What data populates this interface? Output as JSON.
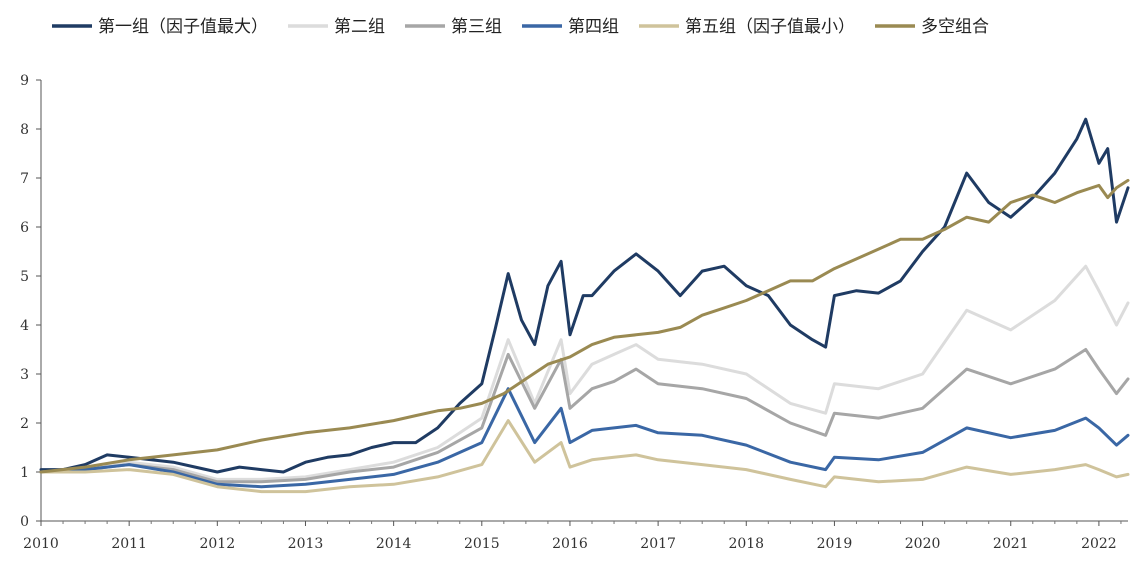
{
  "chart_data": {
    "type": "line",
    "title": "",
    "xlabel": "",
    "ylabel": "",
    "x_range": [
      2010.0,
      2022.33
    ],
    "ylim": [
      0,
      9
    ],
    "yticks": [
      0,
      1,
      2,
      3,
      4,
      5,
      6,
      7,
      8,
      9
    ],
    "xtick_labels": [
      "2010",
      "2011",
      "2012",
      "2013",
      "2014",
      "2015",
      "2016",
      "2017",
      "2018",
      "2019",
      "2020",
      "2021",
      "2022"
    ],
    "grid": false,
    "legend_position": "top",
    "series": [
      {
        "name": "第一组（因子值最大）",
        "color": "#1f3b63",
        "x": [
          2010.0,
          2010.25,
          2010.5,
          2010.75,
          2011.0,
          2011.25,
          2011.5,
          2011.75,
          2012.0,
          2012.25,
          2012.5,
          2012.75,
          2013.0,
          2013.25,
          2013.5,
          2013.75,
          2014.0,
          2014.25,
          2014.5,
          2014.75,
          2015.0,
          2015.15,
          2015.3,
          2015.45,
          2015.6,
          2015.75,
          2015.9,
          2016.0,
          2016.15,
          2016.25,
          2016.5,
          2016.75,
          2017.0,
          2017.25,
          2017.5,
          2017.75,
          2018.0,
          2018.25,
          2018.5,
          2018.75,
          2018.9,
          2019.0,
          2019.25,
          2019.5,
          2019.75,
          2020.0,
          2020.25,
          2020.5,
          2020.75,
          2021.0,
          2021.25,
          2021.5,
          2021.75,
          2021.85,
          2022.0,
          2022.1,
          2022.2,
          2022.33
        ],
        "values": [
          1.05,
          1.05,
          1.15,
          1.35,
          1.3,
          1.25,
          1.2,
          1.1,
          1.0,
          1.1,
          1.05,
          1.0,
          1.2,
          1.3,
          1.35,
          1.5,
          1.6,
          1.6,
          1.9,
          2.4,
          2.8,
          3.9,
          5.05,
          4.1,
          3.6,
          4.8,
          5.3,
          3.8,
          4.6,
          4.6,
          5.1,
          5.45,
          5.1,
          4.6,
          5.1,
          5.2,
          4.8,
          4.6,
          4.0,
          3.7,
          3.55,
          4.6,
          4.7,
          4.65,
          4.9,
          5.5,
          6.0,
          7.1,
          6.5,
          6.2,
          6.6,
          7.1,
          7.8,
          8.2,
          7.3,
          7.6,
          6.1,
          6.8
        ]
      },
      {
        "name": "第二组",
        "color": "#dcdcdc",
        "x": [
          2010.0,
          2010.5,
          2011.0,
          2011.5,
          2012.0,
          2012.5,
          2013.0,
          2013.5,
          2014.0,
          2014.5,
          2015.0,
          2015.3,
          2015.6,
          2015.9,
          2016.0,
          2016.25,
          2016.5,
          2016.75,
          2017.0,
          2017.5,
          2018.0,
          2018.5,
          2018.9,
          2019.0,
          2019.5,
          2020.0,
          2020.5,
          2021.0,
          2021.5,
          2021.85,
          2022.0,
          2022.2,
          2022.33
        ],
        "values": [
          1.0,
          1.05,
          1.2,
          1.1,
          0.85,
          0.85,
          0.9,
          1.05,
          1.2,
          1.5,
          2.1,
          3.7,
          2.4,
          3.7,
          2.6,
          3.2,
          3.4,
          3.6,
          3.3,
          3.2,
          3.0,
          2.4,
          2.2,
          2.8,
          2.7,
          3.0,
          4.3,
          3.9,
          4.5,
          5.2,
          4.7,
          4.0,
          4.45
        ]
      },
      {
        "name": "第三组",
        "color": "#a6a6a6",
        "x": [
          2010.0,
          2010.5,
          2011.0,
          2011.5,
          2012.0,
          2012.5,
          2013.0,
          2013.5,
          2014.0,
          2014.5,
          2015.0,
          2015.3,
          2015.6,
          2015.9,
          2016.0,
          2016.25,
          2016.5,
          2016.75,
          2017.0,
          2017.5,
          2018.0,
          2018.5,
          2018.9,
          2019.0,
          2019.5,
          2020.0,
          2020.5,
          2021.0,
          2021.5,
          2021.85,
          2022.0,
          2022.2,
          2022.33
        ],
        "values": [
          1.0,
          1.05,
          1.15,
          1.05,
          0.8,
          0.8,
          0.85,
          1.0,
          1.1,
          1.4,
          1.9,
          3.4,
          2.3,
          3.3,
          2.3,
          2.7,
          2.85,
          3.1,
          2.8,
          2.7,
          2.5,
          2.0,
          1.75,
          2.2,
          2.1,
          2.3,
          3.1,
          2.8,
          3.1,
          3.5,
          3.1,
          2.6,
          2.9
        ]
      },
      {
        "name": "第四组",
        "color": "#3a67a5",
        "x": [
          2010.0,
          2010.5,
          2011.0,
          2011.5,
          2012.0,
          2012.5,
          2013.0,
          2013.5,
          2014.0,
          2014.5,
          2015.0,
          2015.3,
          2015.6,
          2015.9,
          2016.0,
          2016.25,
          2016.5,
          2016.75,
          2017.0,
          2017.5,
          2018.0,
          2018.5,
          2018.9,
          2019.0,
          2019.5,
          2020.0,
          2020.5,
          2021.0,
          2021.5,
          2021.85,
          2022.0,
          2022.2,
          2022.33
        ],
        "values": [
          1.0,
          1.05,
          1.15,
          1.0,
          0.75,
          0.7,
          0.75,
          0.85,
          0.95,
          1.2,
          1.6,
          2.7,
          1.6,
          2.3,
          1.6,
          1.85,
          1.9,
          1.95,
          1.8,
          1.75,
          1.55,
          1.2,
          1.05,
          1.3,
          1.25,
          1.4,
          1.9,
          1.7,
          1.85,
          2.1,
          1.9,
          1.55,
          1.75
        ]
      },
      {
        "name": "第五组（因子值最小）",
        "color": "#cfc39b",
        "x": [
          2010.0,
          2010.5,
          2011.0,
          2011.5,
          2012.0,
          2012.5,
          2013.0,
          2013.5,
          2014.0,
          2014.5,
          2015.0,
          2015.3,
          2015.6,
          2015.9,
          2016.0,
          2016.25,
          2016.5,
          2016.75,
          2017.0,
          2017.5,
          2018.0,
          2018.5,
          2018.9,
          2019.0,
          2019.5,
          2020.0,
          2020.5,
          2021.0,
          2021.5,
          2021.85,
          2022.0,
          2022.2,
          2022.33
        ],
        "values": [
          1.0,
          1.0,
          1.05,
          0.95,
          0.7,
          0.6,
          0.6,
          0.7,
          0.75,
          0.9,
          1.15,
          2.05,
          1.2,
          1.6,
          1.1,
          1.25,
          1.3,
          1.35,
          1.25,
          1.15,
          1.05,
          0.85,
          0.7,
          0.9,
          0.8,
          0.85,
          1.1,
          0.95,
          1.05,
          1.15,
          1.05,
          0.9,
          0.95
        ]
      },
      {
        "name": "多空组合",
        "color": "#9a8a52",
        "x": [
          2010.0,
          2010.5,
          2011.0,
          2011.5,
          2012.0,
          2012.5,
          2013.0,
          2013.5,
          2014.0,
          2014.25,
          2014.5,
          2014.75,
          2015.0,
          2015.25,
          2015.5,
          2015.75,
          2016.0,
          2016.25,
          2016.5,
          2016.75,
          2017.0,
          2017.25,
          2017.5,
          2017.75,
          2018.0,
          2018.25,
          2018.5,
          2018.75,
          2019.0,
          2019.25,
          2019.5,
          2019.75,
          2020.0,
          2020.25,
          2020.5,
          2020.75,
          2021.0,
          2021.25,
          2021.5,
          2021.75,
          2022.0,
          2022.1,
          2022.2,
          2022.33
        ],
        "values": [
          1.0,
          1.1,
          1.25,
          1.35,
          1.45,
          1.65,
          1.8,
          1.9,
          2.05,
          2.15,
          2.25,
          2.3,
          2.4,
          2.6,
          2.9,
          3.2,
          3.35,
          3.6,
          3.75,
          3.8,
          3.85,
          3.95,
          4.2,
          4.35,
          4.5,
          4.7,
          4.9,
          4.9,
          5.15,
          5.35,
          5.55,
          5.75,
          5.75,
          5.95,
          6.2,
          6.1,
          6.5,
          6.65,
          6.5,
          6.7,
          6.85,
          6.6,
          6.8,
          6.95
        ]
      }
    ]
  }
}
